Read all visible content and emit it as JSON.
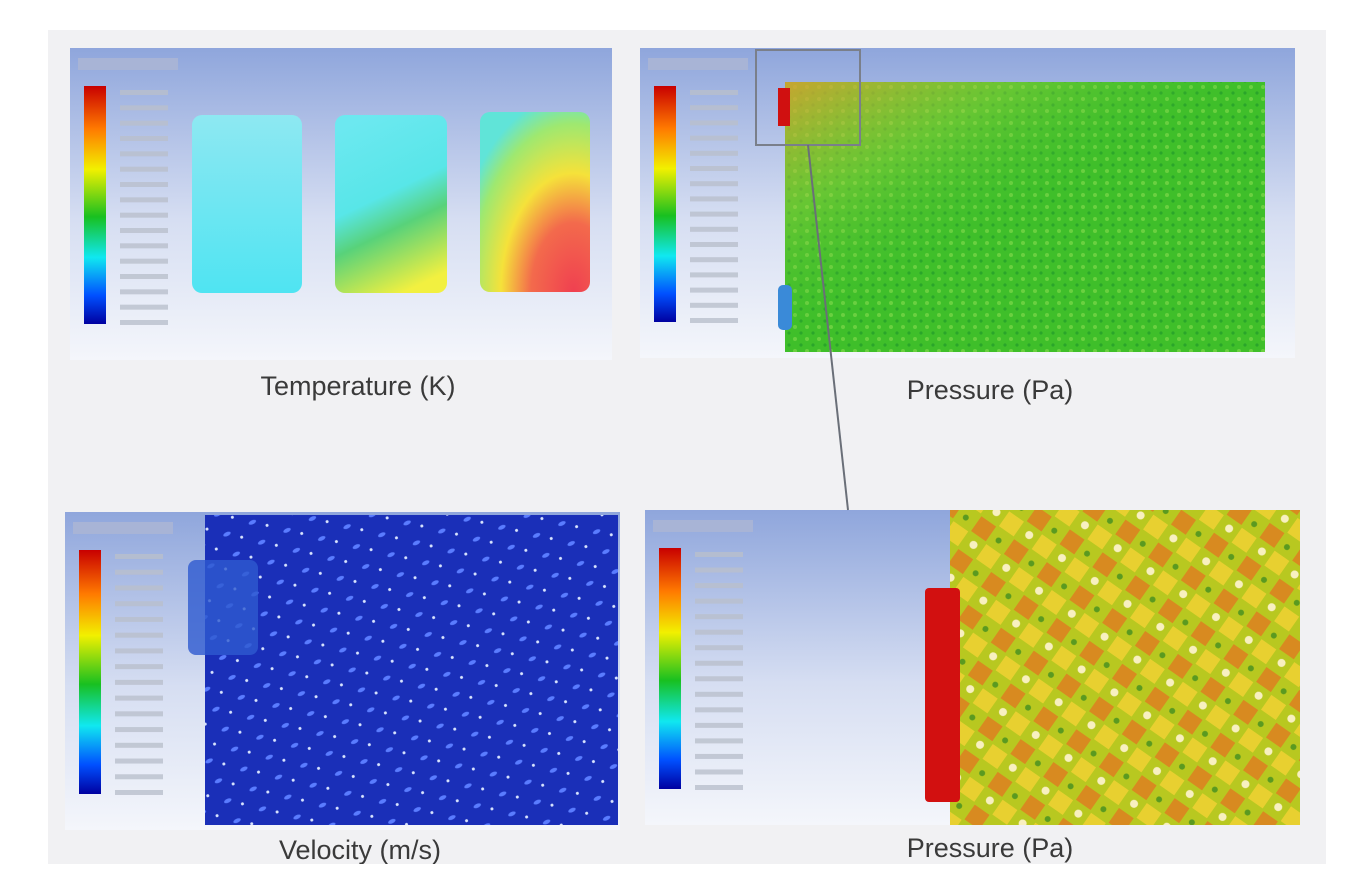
{
  "panels": [
    {
      "caption": "Temperature (K)"
    },
    {
      "caption": "Pressure (Pa)"
    },
    {
      "caption": "Velocity (m/s)"
    },
    {
      "caption": "Pressure (Pa)"
    }
  ]
}
